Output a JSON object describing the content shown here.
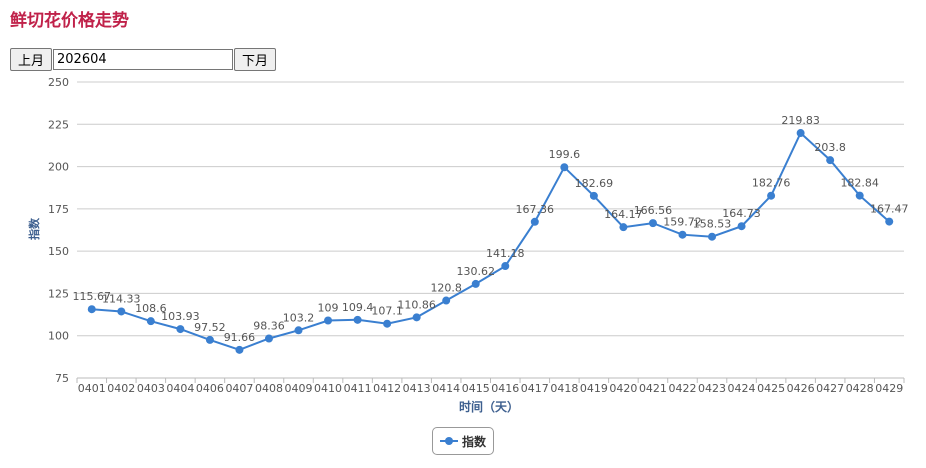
{
  "page": {
    "title": "鲜切花价格走势"
  },
  "controls": {
    "prev_label": "上月",
    "month_value": "202604",
    "next_label": "下月"
  },
  "colors": {
    "title": "#c0224a",
    "series": "#3a7fd0",
    "axis_label": "#3d5f8f",
    "grid": "#cccccc"
  },
  "chart_data": {
    "type": "line",
    "title": "",
    "xlabel": "时间（天）",
    "ylabel": "指数",
    "ylim": [
      75,
      250
    ],
    "yticks": [
      75,
      100,
      125,
      150,
      175,
      200,
      225,
      250
    ],
    "grid": true,
    "legend": "bottom-center",
    "categories": [
      "0401",
      "0402",
      "0403",
      "0404",
      "0406",
      "0407",
      "0408",
      "0409",
      "0410",
      "0411",
      "0412",
      "0413",
      "0414",
      "0415",
      "0416",
      "0417",
      "0418",
      "0419",
      "0420",
      "0421",
      "0422",
      "0423",
      "0424",
      "0425",
      "0426",
      "0427",
      "0428",
      "0429"
    ],
    "series": [
      {
        "name": "指数",
        "values": [
          115.67,
          114.33,
          108.6,
          103.93,
          97.52,
          91.66,
          98.36,
          103.2,
          109,
          109.4,
          107.1,
          110.86,
          120.8,
          130.62,
          141.18,
          167.36,
          199.6,
          182.69,
          164.17,
          166.56,
          159.72,
          158.53,
          164.73,
          182.76,
          219.83,
          203.8,
          182.84,
          167.47
        ]
      }
    ]
  }
}
